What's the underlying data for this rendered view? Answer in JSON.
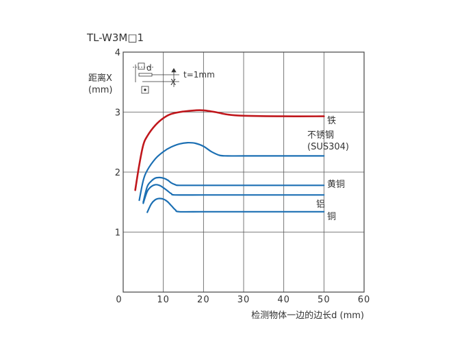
{
  "chart_data": {
    "type": "line",
    "title": "TL-W3M□1",
    "ylabel_line1": "距离X",
    "ylabel_line2": "(mm)",
    "xlabel": "检测物体一边的边长d (mm)",
    "xlim": [
      0,
      60
    ],
    "ylim": [
      0,
      4
    ],
    "x_ticks": [
      "0",
      "10",
      "20",
      "30",
      "40",
      "50",
      "60"
    ],
    "y_ticks": [
      "1",
      "2",
      "3",
      "4"
    ],
    "grid": true,
    "inset": {
      "d_label": "d",
      "x_label": "X",
      "t_label": "t=1mm"
    },
    "series": [
      {
        "name": "铁",
        "color": "#c0171c",
        "x": [
          3,
          4,
          5,
          6,
          8,
          10,
          12,
          15,
          18,
          20,
          23,
          26,
          30,
          40,
          50
        ],
        "y": [
          1.7,
          2.12,
          2.45,
          2.6,
          2.78,
          2.9,
          2.97,
          3.01,
          3.03,
          3.03,
          3.0,
          2.96,
          2.94,
          2.93,
          2.93
        ]
      },
      {
        "name": "不锈钢",
        "name_line2": "(SUS304)",
        "color": "#1b6fb3",
        "x": [
          4,
          5,
          6,
          8,
          10,
          12,
          14,
          16,
          18,
          20,
          22,
          24,
          26,
          30,
          40,
          50
        ],
        "y": [
          1.53,
          1.86,
          2.03,
          2.22,
          2.34,
          2.42,
          2.47,
          2.49,
          2.48,
          2.43,
          2.34,
          2.28,
          2.27,
          2.27,
          2.27,
          2.27
        ]
      },
      {
        "name": "黄铜",
        "color": "#1b6fb3",
        "x": [
          5,
          6,
          7,
          8,
          9,
          10,
          11,
          12,
          13,
          14,
          20,
          30,
          40,
          50
        ],
        "y": [
          1.5,
          1.76,
          1.85,
          1.9,
          1.91,
          1.9,
          1.87,
          1.82,
          1.79,
          1.78,
          1.78,
          1.78,
          1.78,
          1.78
        ]
      },
      {
        "name": "铝",
        "color": "#1b6fb3",
        "x": [
          5,
          6,
          7,
          8,
          9,
          10,
          11,
          12,
          13,
          20,
          30,
          40,
          50
        ],
        "y": [
          1.48,
          1.68,
          1.76,
          1.79,
          1.78,
          1.74,
          1.69,
          1.64,
          1.62,
          1.62,
          1.62,
          1.62,
          1.62
        ]
      },
      {
        "name": "铜",
        "color": "#1b6fb3",
        "x": [
          6,
          7,
          8,
          9,
          10,
          11,
          12,
          13,
          14,
          20,
          30,
          40,
          50
        ],
        "y": [
          1.33,
          1.47,
          1.54,
          1.56,
          1.55,
          1.51,
          1.44,
          1.37,
          1.34,
          1.34,
          1.34,
          1.34,
          1.34
        ]
      }
    ]
  }
}
